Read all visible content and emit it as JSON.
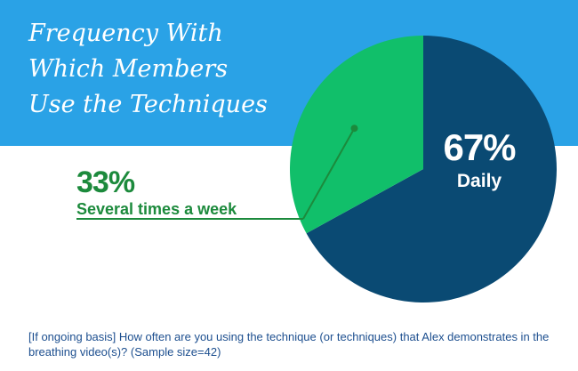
{
  "colors": {
    "band": "#2aa2e6",
    "daily": "#0a4a73",
    "weekly": "#11bf6a",
    "weekly_text": "#1c8a3c",
    "footnote": "#1d4f8f"
  },
  "title_lines": [
    "Frequency With",
    "Which Members",
    "Use the Techniques"
  ],
  "footnote": "[If ongoing basis] How often are you using the technique (or techniques) that Alex demonstrates in the breathing video(s)? (Sample size=42)",
  "chart_data": {
    "type": "pie",
    "title": "Frequency With Which Members Use the Techniques",
    "slices": [
      {
        "label": "Daily",
        "value": 67,
        "display": "67%",
        "color": "#0a4a73"
      },
      {
        "label": "Several times a week",
        "value": 33,
        "display": "33%",
        "color": "#11bf6a"
      }
    ],
    "start": "12 o'clock",
    "direction": "clockwise",
    "legend": "none"
  }
}
